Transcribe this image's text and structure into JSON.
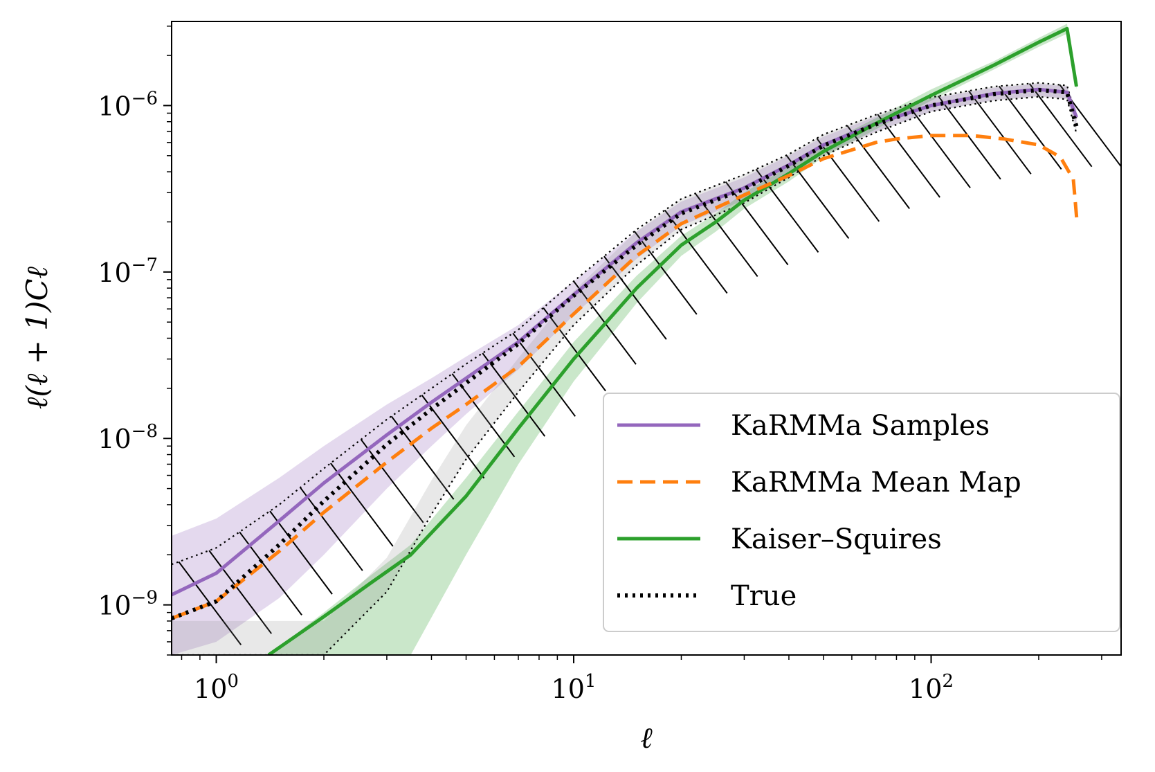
{
  "chart_data": {
    "type": "line",
    "title": "",
    "xlabel": "ℓ",
    "ylabel": "ℓ(ℓ + 1)Cℓ",
    "xscale": "log",
    "yscale": "log",
    "xlim": [
      0.75,
      340
    ],
    "ylim": [
      5e-10,
      3.2e-06
    ],
    "grid": false,
    "legend_position": "lower-right",
    "x_ticks": [
      {
        "value": 1,
        "base": "10",
        "exp": "0"
      },
      {
        "value": 10,
        "base": "10",
        "exp": "1"
      },
      {
        "value": 100,
        "base": "10",
        "exp": "2"
      }
    ],
    "y_ticks": [
      {
        "value": 1e-09,
        "base": "10",
        "exp": "−9"
      },
      {
        "value": 1e-08,
        "base": "10",
        "exp": "−8"
      },
      {
        "value": 1e-07,
        "base": "10",
        "exp": "−7"
      },
      {
        "value": 1e-06,
        "base": "10",
        "exp": "−6"
      }
    ],
    "series": [
      {
        "name": "KaRMMa Samples",
        "color": "#9467bd",
        "style": "solid",
        "x": [
          0.75,
          1,
          1.5,
          2,
          3,
          4,
          5,
          7,
          10,
          15,
          20,
          30,
          40,
          50,
          70,
          100,
          150,
          200,
          240,
          255
        ],
        "y": [
          1.15e-09,
          1.55e-09,
          3.2e-09,
          5.4e-09,
          1.05e-08,
          1.65e-08,
          2.3e-08,
          3.8e-08,
          7.3e-08,
          1.5e-07,
          2.3e-07,
          3.2e-07,
          4.4e-07,
          5.8e-07,
          7.8e-07,
          1e-06,
          1.18e-06,
          1.25e-06,
          1.2e-06,
          8.5e-07
        ],
        "band_lower": [
          5e-10,
          6e-10,
          1.1e-09,
          2e-09,
          5e-09,
          9e-09,
          1.4e-08,
          2.6e-08,
          5.5e-08,
          1.2e-07,
          1.9e-07,
          2.7e-07,
          3.8e-07,
          5.1e-07,
          7e-07,
          9.2e-07,
          1.08e-06,
          1.14e-06,
          1.1e-06,
          7.5e-07
        ],
        "band_upper": [
          2.6e-09,
          3.3e-09,
          5.8e-09,
          9e-09,
          1.6e-08,
          2.3e-08,
          3.1e-08,
          4.8e-08,
          8.8e-08,
          1.75e-07,
          2.65e-07,
          3.7e-07,
          5e-07,
          6.5e-07,
          8.6e-07,
          1.1e-06,
          1.28e-06,
          1.35e-06,
          1.3e-06,
          9.5e-07
        ]
      },
      {
        "name": "KaRMMa Mean Map",
        "color": "#ff7f0e",
        "style": "dashed",
        "x": [
          0.75,
          1,
          1.5,
          2,
          3,
          4,
          5,
          7,
          10,
          15,
          20,
          30,
          40,
          50,
          70,
          80,
          100,
          130,
          160,
          200,
          230,
          250,
          256
        ],
        "y": [
          8.3e-10,
          1.05e-09,
          2.1e-09,
          3.6e-09,
          7.2e-09,
          1.15e-08,
          1.6e-08,
          2.7e-08,
          5.6e-08,
          1.25e-07,
          1.95e-07,
          2.9e-07,
          3.8e-07,
          4.8e-07,
          6e-07,
          6.3e-07,
          6.6e-07,
          6.6e-07,
          6.3e-07,
          5.8e-07,
          4.9e-07,
          3.6e-07,
          2e-07
        ]
      },
      {
        "name": "Kaiser–Squires",
        "color": "#2ca02c",
        "style": "solid",
        "x": [
          1.4,
          2,
          2.7,
          3.5,
          5,
          7,
          10,
          15,
          20,
          25,
          30,
          40,
          50,
          70,
          100,
          150,
          200,
          240,
          255
        ],
        "y": [
          5e-10,
          8.5e-10,
          1.35e-09,
          2e-09,
          4.5e-09,
          1.15e-08,
          3e-08,
          8e-08,
          1.45e-07,
          2e-07,
          2.7e-07,
          3.9e-07,
          5.3e-07,
          7.8e-07,
          1.15e-06,
          1.75e-06,
          2.4e-06,
          2.9e-06,
          1.3e-06
        ],
        "band_lower": [
          5e-10,
          5e-10,
          5e-10,
          5e-10,
          2e-09,
          7e-09,
          2.2e-08,
          6.5e-08,
          1.25e-07,
          1.75e-07,
          2.4e-07,
          3.5e-07,
          4.9e-07,
          7.2e-07,
          1.07e-06,
          1.65e-06,
          2.25e-06,
          2.7e-06,
          1.25e-06
        ],
        "band_upper": [
          5e-10,
          9e-10,
          1.5e-09,
          2.3e-09,
          5.8e-09,
          1.45e-08,
          3.8e-08,
          9.5e-08,
          1.65e-07,
          2.25e-07,
          3e-07,
          4.3e-07,
          5.8e-07,
          8.4e-07,
          1.25e-06,
          1.85e-06,
          2.55e-06,
          3.1e-06,
          1.35e-06
        ]
      },
      {
        "name": "True",
        "color": "#000000",
        "style": "dotted",
        "x": [
          0.75,
          1,
          1.5,
          2,
          3,
          4,
          5,
          7,
          10,
          15,
          20,
          30,
          40,
          50,
          70,
          100,
          150,
          200,
          240,
          255
        ],
        "y": [
          8.3e-10,
          1.05e-09,
          2.3e-09,
          4.2e-09,
          9.2e-09,
          1.5e-08,
          2.15e-08,
          3.7e-08,
          7.2e-08,
          1.45e-07,
          2.25e-07,
          3.15e-07,
          4.35e-07,
          5.75e-07,
          7.7e-07,
          1e-06,
          1.17e-06,
          1.24e-06,
          1.2e-06,
          7.5e-07
        ],
        "band_lower": [
          5e-10,
          5e-10,
          5e-10,
          5e-10,
          1.2e-09,
          3.5e-09,
          7.5e-09,
          1.9e-08,
          4.8e-08,
          1.1e-07,
          1.8e-07,
          2.6e-07,
          3.7e-07,
          5e-07,
          6.9e-07,
          9.2e-07,
          1.07e-06,
          1.13e-06,
          1.09e-06,
          6.8e-07
        ],
        "band_upper": [
          1.75e-09,
          2.2e-09,
          4e-09,
          6.6e-09,
          1.3e-08,
          2e-08,
          2.8e-08,
          4.5e-08,
          8.8e-08,
          1.8e-07,
          2.75e-07,
          3.85e-07,
          5.1e-07,
          6.7e-07,
          8.8e-07,
          1.12e-06,
          1.3e-06,
          1.37e-06,
          1.32e-06,
          8.4e-07
        ]
      }
    ],
    "legend": [
      {
        "label": "KaRMMa Samples",
        "color": "#9467bd",
        "style": "solid"
      },
      {
        "label": "KaRMMa Mean Map",
        "color": "#ff7f0e",
        "style": "dashed"
      },
      {
        "label": "Kaiser–Squires",
        "color": "#2ca02c",
        "style": "solid"
      },
      {
        "label": "True",
        "color": "#000000",
        "style": "dotted"
      }
    ]
  }
}
